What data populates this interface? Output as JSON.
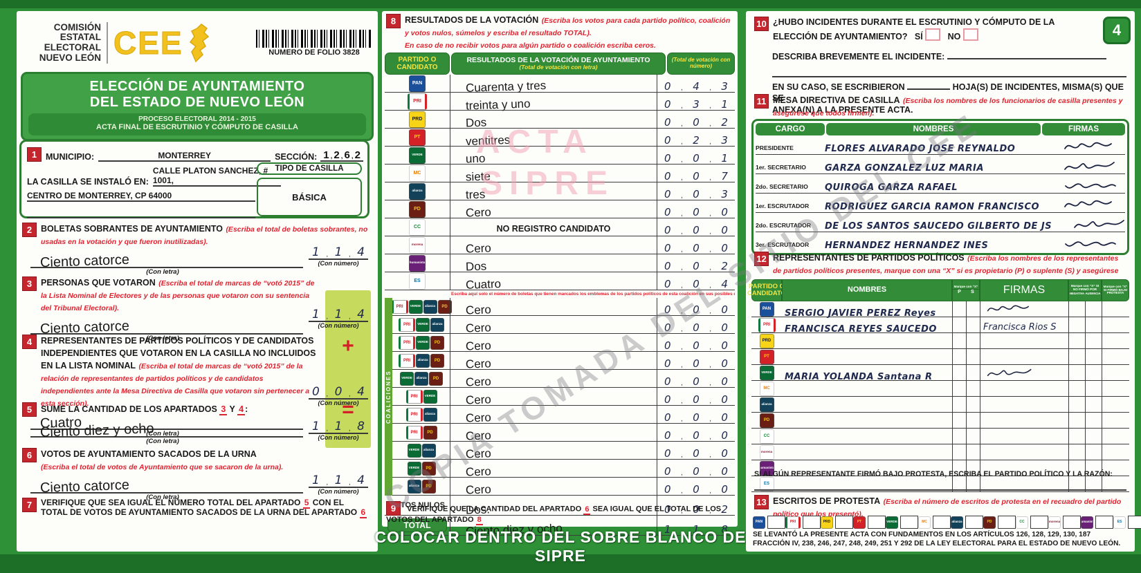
{
  "page": {
    "number": "4"
  },
  "header": {
    "org_lines": [
      "COMISIÓN",
      "ESTATAL",
      "ELECTORAL",
      "NUEVO LEÓN"
    ],
    "logo_text": "CEE",
    "folio": "NUMERO DE FOLIO 3828"
  },
  "title": {
    "line1": "ELECCIÓN DE AYUNTAMIENTO",
    "line2": "DEL ESTADO DE NUEVO LEÓN",
    "process": "PROCESO ELECTORAL  2014 - 2015",
    "acta": "ACTA FINAL DE ESCRUTINIO Y CÓMPUTO DE CASILLA"
  },
  "colors": {
    "brand_green": "#2f9137",
    "dark_green": "#1d6f27",
    "badge_red": "#c5252c",
    "instruction_red": "#e02330",
    "highlight_green": "#c6da5e",
    "brand_yellow": "#f2c11e",
    "ink": "#202a4e"
  },
  "s1": {
    "num": "1",
    "municipio_label": "MUNICIPIO:",
    "municipio": "MONTERREY",
    "seccion_label": "SECCIÓN:",
    "seccion": "1262",
    "casilla_label": "LA CASILLA SE INSTALÓ EN:",
    "direccion1": "CALLE PLATON SANCHEZ, # 1001,",
    "direccion2": "CENTRO DE MONTERREY, CP 64000",
    "tipo_label": "TIPO DE CASILLA",
    "tipo": "BÁSICA"
  },
  "s2": {
    "num": "2",
    "title": "BOLETAS SOBRANTES DE AYUNTAMIENTO",
    "instr": "(Escriba el total de boletas sobrantes, no usadas en la votación y que fueron inutilizadas).",
    "letra": "Ciento catorce",
    "numero": "114",
    "con_letra": "(Con letra)",
    "con_numero": "(Con número)"
  },
  "s3": {
    "num": "3",
    "title": "PERSONAS QUE VOTARON",
    "instr": "(Escriba el total de marcas de “votó 2015” de la Lista Nominal de Electores y de las personas que votaron con su sentencia del Tribunal Electoral).",
    "letra": "Ciento catorce",
    "numero": "114",
    "con_letra": "(Con letra)",
    "con_numero": "(Con número)"
  },
  "s4": {
    "num": "4",
    "title": "REPRESENTANTES DE PARTIDOS POLÍTICOS Y DE CANDIDATOS INDEPENDIENTES QUE VOTARON EN LA CASILLA NO INCLUIDOS EN LA LISTA NOMINAL",
    "instr": "(Escriba el total de marcas de “votó 2015” de la relación de representantes de partidos políticos y de candidatos independientes ante la Mesa Directiva de Casilla que votaron sin pertenecer a esta sección).",
    "letra": "Cuatro",
    "numero": "004",
    "con_letra": "(Con letra)",
    "con_numero": "(Con número)",
    "plus": "+"
  },
  "s5": {
    "num": "5",
    "title_pre": "SUME LA CANTIDAD DE LOS APARTADOS",
    "ref1": "3",
    "conj": "Y",
    "ref2": "4",
    "colon": ":",
    "letra": "Ciento diez y ocho",
    "numero": "118",
    "con_letra": "(Con letra)",
    "con_numero": "(Con número)",
    "equals": "="
  },
  "s6": {
    "num": "6",
    "title": "VOTOS DE AYUNTAMIENTO SACADOS DE LA URNA",
    "instr": "(Escriba el total de votos de Ayuntamiento que se sacaron de la urna).",
    "letra": "Ciento catorce",
    "numero": "114",
    "con_letra": "(Con letra)",
    "con_numero": "(Con número)"
  },
  "s7": {
    "num": "7",
    "pre": "VERIFIQUE QUE SEA IGUAL EL NÚMERO TOTAL DEL APARTADO",
    "ref1": "5",
    "mid": "CON EL TOTAL DE VOTOS DE AYUNTAMIENTO SACADOS DE LA URNA DEL APARTADO",
    "ref2": "6"
  },
  "s8": {
    "num": "8",
    "title": "RESULTADOS DE LA VOTACIÓN",
    "instr1": "(Escriba los votos para cada partido político, coalición y votos nulos, súmelos y escriba el resultado TOTAL).",
    "instr2": "En caso de no recibir votos para algún partido o coalición escriba ceros.",
    "col_partido": "PARTIDO O CANDIDATO",
    "col_letra_1": "RESULTADOS DE LA VOTACIÓN DE AYUNTAMIENTO",
    "col_letra_2": "(Total de votación con letra)",
    "col_numero": "(Total de votación con número)"
  },
  "results": {
    "rows": [
      {
        "party": "pan",
        "letra": "Cuarenta y tres",
        "numero": "043"
      },
      {
        "party": "pri",
        "letra": "treinta y uno",
        "numero": "031"
      },
      {
        "party": "prd",
        "letra": "Dos",
        "numero": "002"
      },
      {
        "party": "pt",
        "letra": "ventitres",
        "numero": "023"
      },
      {
        "party": "verde",
        "letra": "uno",
        "numero": "001"
      },
      {
        "party": "mc",
        "letra": "siete",
        "numero": "007"
      },
      {
        "party": "alianza",
        "letra": "tres",
        "numero": "003"
      },
      {
        "party": "pd",
        "letra": "Cero",
        "numero": "000"
      },
      {
        "party": "cruzada",
        "letra": "NO REGISTRO CANDIDATO",
        "tipo": "typed",
        "numero": "000"
      },
      {
        "party": "morena",
        "letra": "Cero",
        "numero": "000"
      },
      {
        "party": "humanista",
        "letra": "Dos",
        "numero": "002"
      },
      {
        "party": "es",
        "letra": "Cuatro",
        "numero": "004"
      }
    ],
    "coalition_note": "Escriba aquí solo el número de boletas que tienen marcados los emblemas de los partidos políticos de esta coalición en sus posibles combinaciones.",
    "coalition_label": "COALICIONES",
    "coalitions": [
      {
        "combo": [
          "pri",
          "verde",
          "alianza",
          "pd"
        ],
        "letra": "Cero",
        "numero": "000"
      },
      {
        "combo": [
          "pri",
          "verde",
          "alianza"
        ],
        "letra": "Cero",
        "numero": "000"
      },
      {
        "combo": [
          "pri",
          "verde",
          "pd"
        ],
        "letra": "Cero",
        "numero": "000"
      },
      {
        "combo": [
          "pri",
          "alianza",
          "pd"
        ],
        "letra": "Cero",
        "numero": "000"
      },
      {
        "combo": [
          "verde",
          "alianza",
          "pd"
        ],
        "letra": "Cero",
        "numero": "000"
      },
      {
        "combo": [
          "pri",
          "verde"
        ],
        "letra": "Cero",
        "numero": "000"
      },
      {
        "combo": [
          "pri",
          "alianza"
        ],
        "letra": "Cero",
        "numero": "000"
      },
      {
        "combo": [
          "pri",
          "pd"
        ],
        "letra": "Cero",
        "numero": "000"
      },
      {
        "combo": [
          "verde",
          "alianza"
        ],
        "letra": "Cero",
        "numero": "000"
      },
      {
        "combo": [
          "verde",
          "pd"
        ],
        "letra": "Cero",
        "numero": "000"
      },
      {
        "combo": [
          "alianza",
          "pd"
        ],
        "letra": "Cero",
        "numero": "000"
      }
    ],
    "nulos": {
      "label": "VOTOS NULOS",
      "letra": "Dos.",
      "numero": "002"
    },
    "total": {
      "label": "TOTAL",
      "letra": "Ciento diez y ocho",
      "numero": "118"
    }
  },
  "s9": {
    "num": "9",
    "pre": "VERIFIQUE QUE LA CANTIDAD DEL APARTADO",
    "ref1": "6",
    "mid": "SEA IGUAL QUE EL TOTAL DE LOS VOTOS DEL APARTADO",
    "ref2": "8"
  },
  "banner": "COLOCAR DENTRO DEL SOBRE BLANCO DE SIPRE",
  "s10": {
    "num": "10",
    "q1": "¿HUBO INCIDENTES DURANTE EL ESCRUTINIO Y CÓMPUTO DE LA",
    "q2": "ELECCIÓN DE AYUNTAMIENTO?",
    "si": "SÍ",
    "no": "NO",
    "describa": "DESCRIBA BREVEMENTE EL INCIDENTE:",
    "caso_pre": "EN SU CASO, SE ESCRIBIERON",
    "caso_post": "HOJA(S) DE INCIDENTES, MISMA(S) QUE SE",
    "caso_post2": "ANEXA(N) A LA PRESENTE ACTA."
  },
  "s11": {
    "num": "11",
    "title": "MESA DIRECTIVA DE CASILLA",
    "instr": "(Escriba los nombres de los funcionarios de casilla presentes y asegúrese que todos firmen).",
    "headers": [
      "CARGO",
      "NOMBRES",
      "FIRMAS"
    ],
    "rows": [
      {
        "cargo": "PRESIDENTE",
        "nombre": "FLORES ALVARADO JOSE REYNALDO",
        "firma": true
      },
      {
        "cargo": "1er. SECRETARIO",
        "nombre": "GARZA GONZALEZ LUZ MARIA",
        "firma": true
      },
      {
        "cargo": "2do. SECRETARIO",
        "nombre": "QUIROGA GARZA RAFAEL",
        "firma": true
      },
      {
        "cargo": "1er. ESCRUTADOR",
        "nombre": "RODRIGUEZ GARCIA RAMON FRANCISCO",
        "firma": true
      },
      {
        "cargo": "2do. ESCRUTADOR",
        "nombre": "DE LOS SANTOS SAUCEDO GILBERTO DE JS",
        "firma": true
      },
      {
        "cargo": "3er. ESCRUTADOR",
        "nombre": "HERNANDEZ HERNANDEZ INES",
        "firma": true
      }
    ]
  },
  "s12": {
    "num": "12",
    "title": "REPRESENTANTES DE PARTIDOS POLÍTICOS",
    "instr": "(Escriba los nombres de los representantes de partidos políticos presentes, marque con una “X” si es propietario (P) o suplente (S) y asegúrese que todos firmen).",
    "col_partido": "PARTIDO O CANDIDATO",
    "col_nombres": "NOMBRES",
    "col_marque": "Marque con “X”",
    "col_p": "P",
    "col_s": "S",
    "col_firmas": "FIRMAS",
    "col_nofirmo": "Marque con “X” SI NO FIRMÓ POR",
    "col_negativa": "NEGATIVA",
    "col_ausencia": "AUSENCIA",
    "col_protesta": "Marque con “X” SI FIRMÓ BAJO PROTESTA",
    "rows": [
      {
        "party": "pan",
        "nombre": "SERGIO JAVIER PEREZ Reyes",
        "firma": "sig"
      },
      {
        "party": "pri",
        "nombre": "FRANCISCA REYES SAUCEDO",
        "firma": "Francisca Rios S"
      },
      {
        "party": "prd",
        "nombre": "",
        "firma": ""
      },
      {
        "party": "pt",
        "nombre": "",
        "firma": ""
      },
      {
        "party": "verde",
        "nombre": "MARIA YOLANDA Santana R",
        "firma": "sig"
      },
      {
        "party": "mc",
        "nombre": "",
        "firma": ""
      },
      {
        "party": "alianza",
        "nombre": "",
        "firma": ""
      },
      {
        "party": "pd",
        "nombre": "",
        "firma": ""
      },
      {
        "party": "cruzada",
        "nombre": "",
        "firma": ""
      },
      {
        "party": "morena",
        "nombre": "",
        "firma": ""
      },
      {
        "party": "humanista",
        "nombre": "",
        "firma": ""
      },
      {
        "party": "es",
        "nombre": "",
        "firma": ""
      }
    ],
    "protesta_note": "SI ALGÚN REPRESENTANTE FIRMÓ BAJO PROTESTA, ESCRIBA EL PARTIDO POLÍTICO Y LA RAZÓN:"
  },
  "s13": {
    "num": "13",
    "title": "ESCRITOS DE PROTESTA",
    "instr": "(Escriba el número de escritos de protesta en el recuadro del partido político que los presentó).",
    "parties": [
      "pan",
      "pri",
      "prd",
      "pt",
      "verde",
      "mc",
      "alianza",
      "pd",
      "cruzada",
      "morena",
      "humanista",
      "es"
    ]
  },
  "footer_legal": "SE LEVANTÓ LA PRESENTE ACTA CON FUNDAMENTOS EN LOS ARTÍCULOS 126, 128, 129, 130, 187 FRACCIÓN IV, 238, 246, 247, 248, 249, 251 Y 292 DE LA LEY ELECTORAL PARA EL ESTADO DE NUEVO LEÓN.",
  "watermarks": {
    "pink1": "ACTA",
    "pink2": "SIPRE",
    "gray": "COPIA TOMADA DEL SITIO DEL CEE"
  },
  "parties": {
    "pan": {
      "label": "PAN",
      "bg": "#1a4f9c",
      "fg": "#ffffff"
    },
    "pri": {
      "label": "PRI",
      "bg": "#ffffff",
      "fg": "#d42027"
    },
    "prd": {
      "label": "PRD",
      "bg": "#f7d417",
      "fg": "#1a1a1a"
    },
    "pt": {
      "label": "PT",
      "bg": "#d42027",
      "fg": "#ffd400"
    },
    "verde": {
      "label": "VERDE",
      "bg": "#0b6b35",
      "fg": "#ffffff"
    },
    "mc": {
      "label": "MC",
      "bg": "#ffffff",
      "fg": "#f07d00"
    },
    "alianza": {
      "label": "alianza",
      "bg": "#12425a",
      "fg": "#ffffff"
    },
    "pd": {
      "label": "PD",
      "bg": "#6b1f14",
      "fg": "#f2c11e"
    },
    "cruzada": {
      "label": "CC",
      "bg": "#ffffff",
      "fg": "#1a8a36"
    },
    "morena": {
      "label": "morena",
      "bg": "#ffffff",
      "fg": "#8c1b2f"
    },
    "humanista": {
      "label": "humanista",
      "bg": "#6a2077",
      "fg": "#ffffff"
    },
    "es": {
      "label": "ES",
      "bg": "#ffffff",
      "fg": "#0073ae"
    }
  }
}
